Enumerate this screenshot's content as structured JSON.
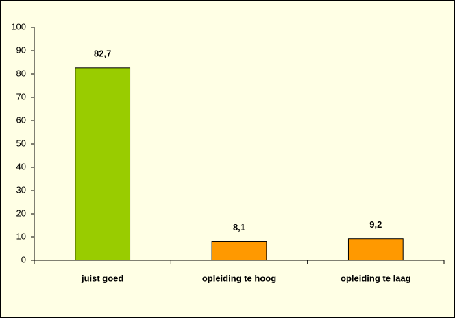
{
  "chart_data": {
    "type": "bar",
    "categories": [
      "juist goed",
      "opleiding te hoog",
      "opleiding te laag"
    ],
    "values": [
      82.7,
      8.1,
      9.2
    ],
    "value_labels": [
      "82,7",
      "8,1",
      "9,2"
    ],
    "colors": [
      "#99cc00",
      "#ff9900",
      "#ff9900"
    ],
    "ylim": [
      0,
      100
    ],
    "yticks": [
      0,
      10,
      20,
      30,
      40,
      50,
      60,
      70,
      80,
      90,
      100
    ],
    "grid": false,
    "background": "#ffffe5"
  }
}
